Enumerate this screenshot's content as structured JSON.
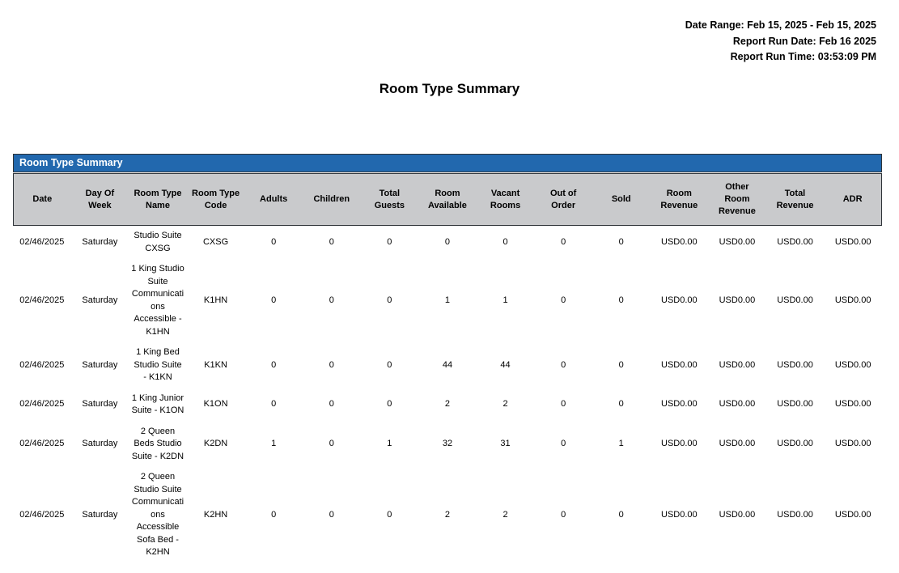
{
  "report_header": {
    "date_range": "Date Range: Feb 15, 2025 - Feb 15, 2025",
    "run_date": "Report Run Date: Feb 16 2025",
    "run_time": "Report Run Time: 03:53:09 PM"
  },
  "title": "Room Type Summary",
  "table": {
    "section_title": "Room Type Summary",
    "columns": [
      "Date",
      "Day Of Week",
      "Room Type Name",
      "Room Type Code",
      "Adults",
      "Children",
      "Total Guests",
      "Room Available",
      "Vacant Rooms",
      "Out of Order",
      "Sold",
      "Room Revenue",
      "Other Room Revenue",
      "Total Revenue",
      "ADR"
    ],
    "rows": [
      [
        "02/46/2025",
        "Saturday",
        "Studio Suite CXSG",
        "CXSG",
        "0",
        "0",
        "0",
        "0",
        "0",
        "0",
        "0",
        "USD0.00",
        "USD0.00",
        "USD0.00",
        "USD0.00"
      ],
      [
        "02/46/2025",
        "Saturday",
        "1 King Studio Suite Communications Accessible - K1HN",
        "K1HN",
        "0",
        "0",
        "0",
        "1",
        "1",
        "0",
        "0",
        "USD0.00",
        "USD0.00",
        "USD0.00",
        "USD0.00"
      ],
      [
        "02/46/2025",
        "Saturday",
        "1 King Bed Studio Suite - K1KN",
        "K1KN",
        "0",
        "0",
        "0",
        "44",
        "44",
        "0",
        "0",
        "USD0.00",
        "USD0.00",
        "USD0.00",
        "USD0.00"
      ],
      [
        "02/46/2025",
        "Saturday",
        "1 King Junior Suite - K1ON",
        "K1ON",
        "0",
        "0",
        "0",
        "2",
        "2",
        "0",
        "0",
        "USD0.00",
        "USD0.00",
        "USD0.00",
        "USD0.00"
      ],
      [
        "02/46/2025",
        "Saturday",
        "2 Queen Beds Studio Suite - K2DN",
        "K2DN",
        "1",
        "0",
        "1",
        "32",
        "31",
        "0",
        "1",
        "USD0.00",
        "USD0.00",
        "USD0.00",
        "USD0.00"
      ],
      [
        "02/46/2025",
        "Saturday",
        "2 Queen Studio Suite Communications Accessible Sofa Bed - K2HN",
        "K2HN",
        "0",
        "0",
        "0",
        "2",
        "2",
        "0",
        "0",
        "USD0.00",
        "USD0.00",
        "USD0.00",
        "USD0.00"
      ]
    ]
  },
  "colors": {
    "header_bar_blue": "#2268AE",
    "column_header_gray": "#C9CACC",
    "border_dark": "#2e3338",
    "section_title_text": "#ffffff"
  }
}
